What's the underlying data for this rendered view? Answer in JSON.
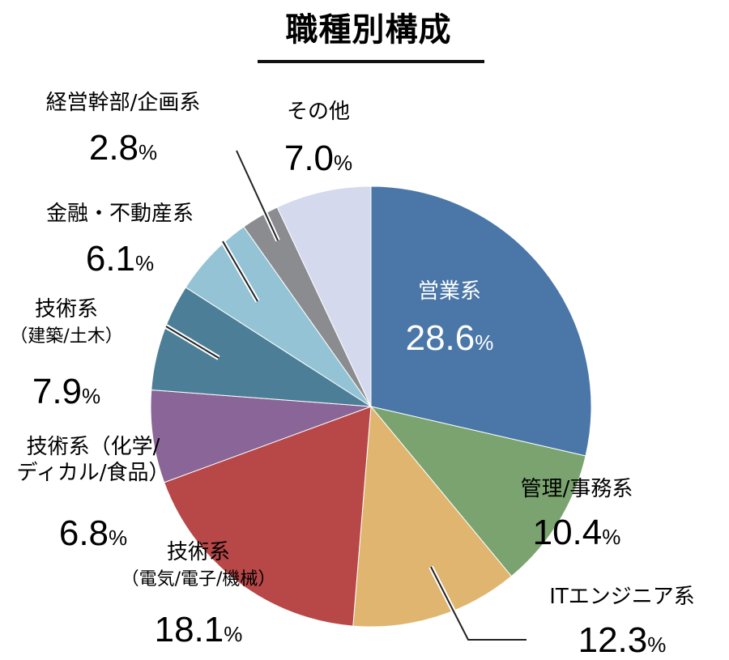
{
  "chart_data": {
    "type": "pie",
    "title": "職種別構成",
    "unit": "%",
    "slices": [
      {
        "name": "営業系",
        "value": 28.6,
        "value_label": "28.6",
        "color": "#4a77a8",
        "label_lines": [
          "営業系"
        ]
      },
      {
        "name": "管理/事務系",
        "value": 10.4,
        "value_label": "10.4",
        "color": "#7aa36f",
        "label_lines": [
          "管理/事務系"
        ]
      },
      {
        "name": "ITエンジニア系",
        "value": 12.3,
        "value_label": "12.3",
        "color": "#dfb56f",
        "label_lines": [
          "ITエンジニア系"
        ]
      },
      {
        "name": "技術系（電気/電子/機械）",
        "value": 18.1,
        "value_label": "18.1",
        "color": "#b84747",
        "label_lines": [
          "技術系",
          "（電気/電子/機械）"
        ]
      },
      {
        "name": "技術系（化学/ディカル/食品）",
        "value": 6.8,
        "value_label": "6.8",
        "color": "#8a6597",
        "label_lines": [
          "技術系（化学/",
          "ディカル/食品）"
        ]
      },
      {
        "name": "技術系（建築/土木）",
        "value": 7.9,
        "value_label": "7.9",
        "color": "#4c7f97",
        "label_lines": [
          "技術系",
          "（建築/土木）"
        ]
      },
      {
        "name": "金融・不動産系",
        "value": 6.1,
        "value_label": "6.1",
        "color": "#93c3d5",
        "label_lines": [
          "金融・不動産系"
        ]
      },
      {
        "name": "経営幹部/企画系",
        "value": 2.8,
        "value_label": "2.8",
        "color": "#8a8c90",
        "label_lines": [
          "経営幹部/企画系"
        ]
      },
      {
        "name": "その他",
        "value": 7.0,
        "value_label": "7.0",
        "color": "#d5d9ed",
        "label_lines": [
          "その他"
        ]
      }
    ]
  }
}
